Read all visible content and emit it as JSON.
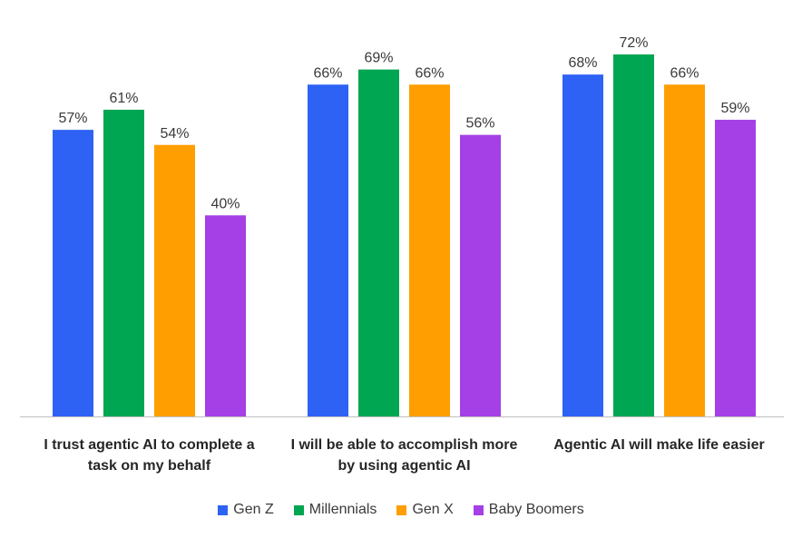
{
  "chart_data": {
    "type": "bar",
    "categories": [
      [
        "I trust agentic AI to complete a",
        "task on my behalf"
      ],
      [
        "I will be able to accomplish more",
        "by using agentic AI"
      ],
      [
        "Agentic AI will make life easier"
      ]
    ],
    "series": [
      {
        "name": "Gen Z",
        "color": "#2E62F5",
        "values": [
          57,
          66,
          68
        ]
      },
      {
        "name": "Millennials",
        "color": "#00A651",
        "values": [
          61,
          69,
          72
        ]
      },
      {
        "name": "Gen X",
        "color": "#FF9E00",
        "values": [
          54,
          66,
          66
        ]
      },
      {
        "name": "Baby Boomers",
        "color": "#A53FE6",
        "values": [
          40,
          56,
          59
        ]
      }
    ],
    "value_suffix": "%",
    "title": "",
    "xlabel": "",
    "ylabel": "",
    "ylim": [
      0,
      72
    ],
    "grid": false,
    "legend_position": "bottom"
  }
}
